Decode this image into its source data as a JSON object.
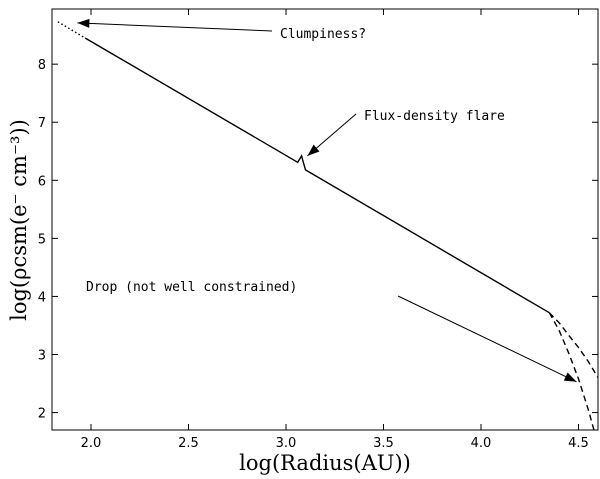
{
  "chart_data": {
    "type": "line",
    "title": "",
    "xlabel": "log(Radius(AU))",
    "ylabel": "log(ρcsm(e⁻ cm⁻³))",
    "xlim": [
      1.8,
      4.6
    ],
    "ylim": [
      1.7,
      8.95
    ],
    "x_ticks": [
      2.0,
      2.5,
      3.0,
      3.5,
      4.0,
      4.5
    ],
    "x_tick_labels": [
      "2.0",
      "2.5",
      "3.0",
      "3.5",
      "4.0",
      "4.5"
    ],
    "y_ticks": [
      2,
      3,
      4,
      5,
      6,
      7,
      8
    ],
    "y_tick_labels": [
      "2",
      "3",
      "4",
      "5",
      "6",
      "7",
      "8"
    ],
    "grid": false,
    "series": [
      {
        "style": "dotted",
        "color": "#000000",
        "x": [
          1.83,
          1.97
        ],
        "y": [
          8.73,
          8.45
        ]
      },
      {
        "style": "solid",
        "color": "#000000",
        "x": [
          1.97,
          3.06,
          3.08,
          3.09,
          3.1,
          4.35
        ],
        "y": [
          8.45,
          6.31,
          6.42,
          6.3,
          6.18,
          3.72
        ]
      },
      {
        "style": "dashed",
        "color": "#000000",
        "x": [
          4.35,
          4.4,
          4.45,
          4.5,
          4.55,
          4.6
        ],
        "y": [
          3.72,
          3.55,
          3.33,
          3.12,
          2.88,
          2.6
        ]
      },
      {
        "style": "dashed",
        "color": "#000000",
        "x": [
          4.35,
          4.4,
          4.45,
          4.5,
          4.55,
          4.6
        ],
        "y": [
          3.72,
          3.42,
          3.02,
          2.58,
          2.05,
          1.45
        ]
      }
    ],
    "annotations": [
      {
        "text": "Clumpiness?",
        "arrow_to": [
          1.93,
          8.71
        ]
      },
      {
        "text": "Flux-density flare",
        "arrow_to": [
          3.11,
          6.42
        ]
      },
      {
        "text": "Drop (not well constrained)",
        "arrow_to": [
          4.49,
          2.53
        ]
      }
    ]
  }
}
